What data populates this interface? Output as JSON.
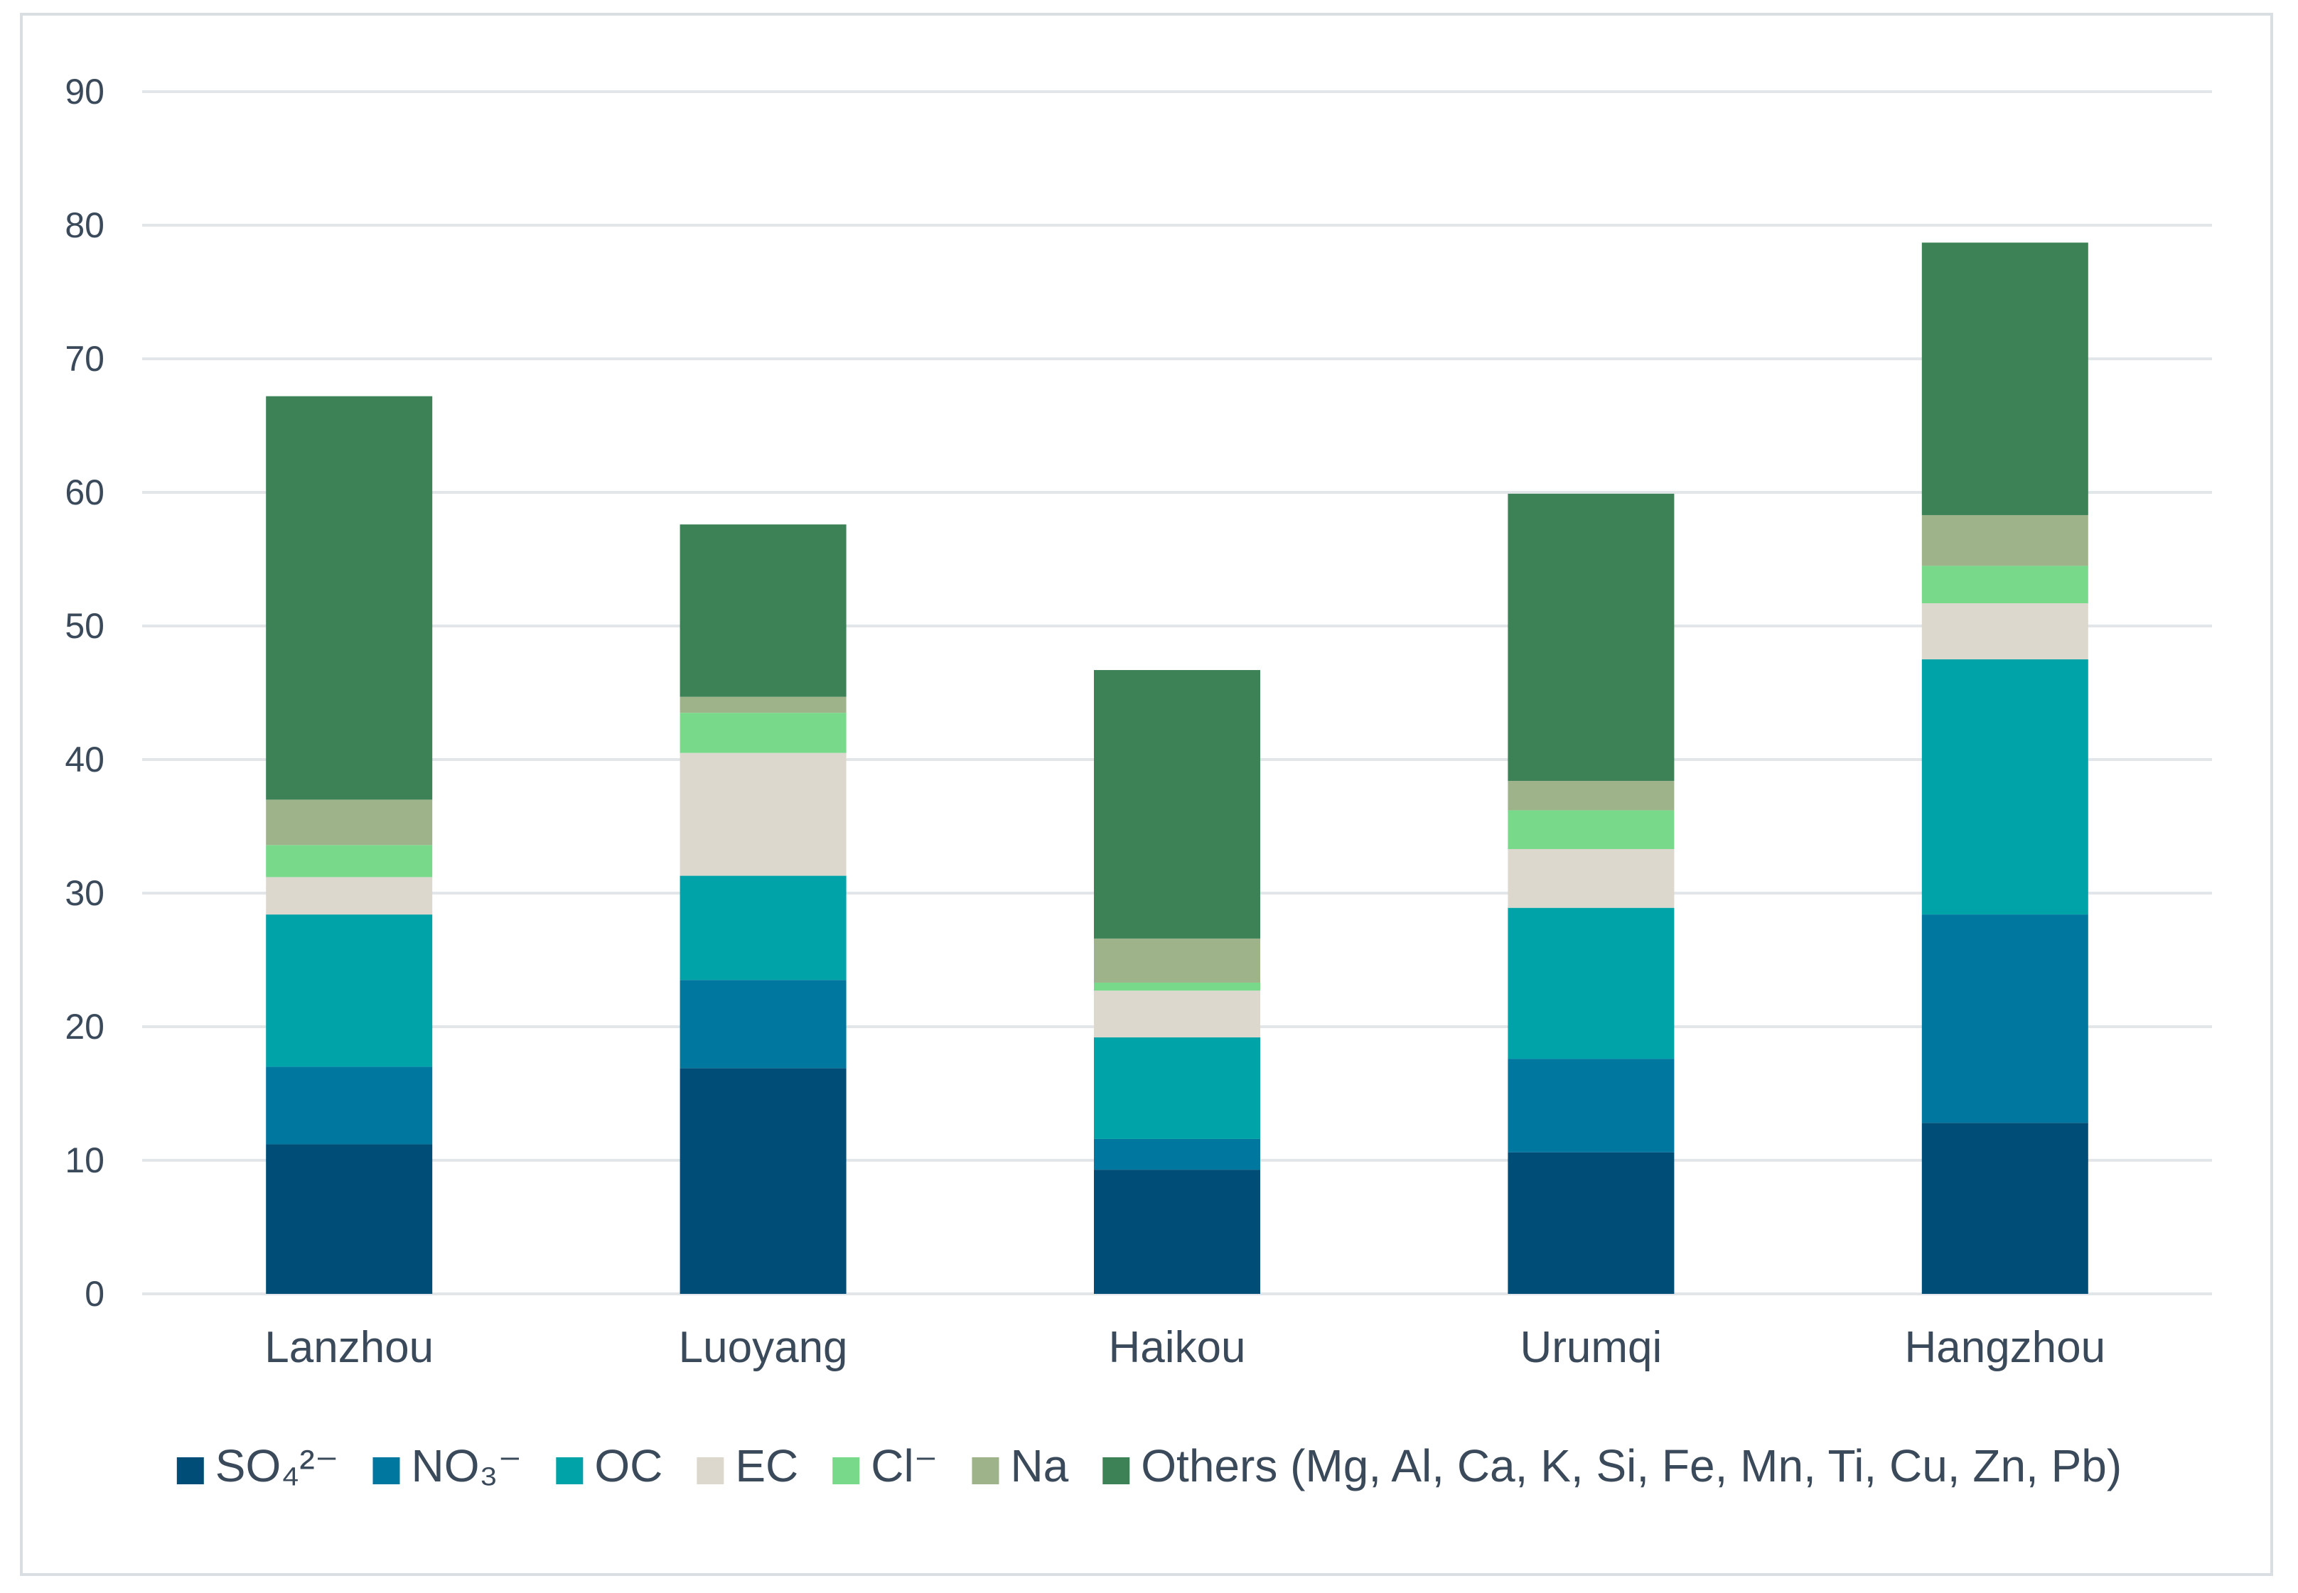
{
  "chart_data": {
    "type": "bar",
    "stacked": true,
    "title": "",
    "xlabel": "",
    "ylabel": "",
    "ylim": [
      0,
      90
    ],
    "yticks": [
      0,
      10,
      20,
      30,
      40,
      50,
      60,
      70,
      80,
      90
    ],
    "grid": true,
    "legend_position": "bottom",
    "categories": [
      "Lanzhou",
      "Luoyang",
      "Haikou",
      "Urumqi",
      "Hangzhou"
    ],
    "series": [
      {
        "name": "SO₄²⁻",
        "color": "#004d78",
        "values": [
          11.2,
          16.9,
          9.3,
          10.6,
          12.8
        ]
      },
      {
        "name": "NO₃⁻",
        "color": "#00779f",
        "values": [
          5.8,
          6.6,
          2.3,
          7.0,
          15.6
        ]
      },
      {
        "name": "OC",
        "color": "#00a3a7",
        "values": [
          11.4,
          7.8,
          7.6,
          11.3,
          19.1
        ]
      },
      {
        "name": "EC",
        "color": "#ddd8ce",
        "values": [
          2.8,
          9.2,
          3.5,
          4.4,
          4.2
        ]
      },
      {
        "name": "Cl⁻",
        "color": "#78d98b",
        "values": [
          2.4,
          3.0,
          0.6,
          2.9,
          2.8
        ]
      },
      {
        "name": "Na",
        "color": "#9fb38a",
        "values": [
          3.4,
          1.2,
          3.3,
          2.2,
          3.8
        ]
      },
      {
        "name": "Others (Mg, Al, Ca, K, Si, Fe, Mn, Ti, Cu, Zn, Pb)",
        "color": "#3c8256",
        "values": [
          30.2,
          12.9,
          20.1,
          21.5,
          20.4
        ]
      }
    ]
  }
}
